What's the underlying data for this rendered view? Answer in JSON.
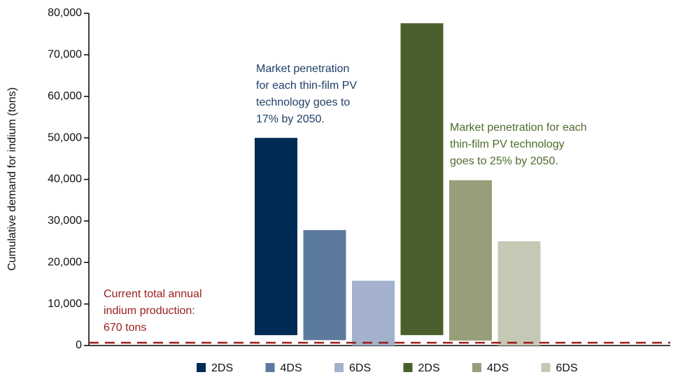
{
  "chart_data": {
    "type": "floating-bar",
    "y_label": "Cumulative demand for indium (tons)",
    "ylim": [
      0,
      80000
    ],
    "yticks": [
      0,
      {
        "value": 10000,
        "label": "10,000"
      },
      {
        "value": 20000,
        "label": "20,000"
      },
      {
        "value": 30000,
        "label": "30,000"
      },
      {
        "value": 40000,
        "label": "40,000"
      },
      {
        "value": 50000,
        "label": "50,000"
      },
      {
        "value": 60000,
        "label": "60,000"
      },
      {
        "value": 70000,
        "label": "70,000"
      },
      {
        "value": 80000,
        "label": "80,000"
      }
    ],
    "series": [
      {
        "name": "2DS",
        "color": "#002b54",
        "values": [
          50000
        ],
        "base": [
          2500
        ]
      },
      {
        "name": "4DS",
        "color": "#5c7a9e",
        "values": [
          27800
        ],
        "base": [
          1300
        ]
      },
      {
        "name": "6DS",
        "color": "#a3b1cc",
        "values": [
          15600
        ],
        "base": [
          0
        ]
      },
      {
        "name": "2DS",
        "color": "#4a602c",
        "values": [
          77600
        ],
        "base": [
          2500
        ]
      },
      {
        "name": "4DS",
        "color": "#969f7a",
        "values": [
          39800
        ],
        "base": [
          1200
        ]
      },
      {
        "name": "6DS",
        "color": "#c6c8b5",
        "values": [
          25100
        ],
        "base": [
          0
        ]
      }
    ],
    "reference_line": {
      "value": 670,
      "color": "#9b1c1c"
    },
    "annotations": [
      {
        "lines": [
          "Market penetration",
          "for each thin-film PV",
          "technology goes to",
          "17% by 2050."
        ],
        "color": "#1f3f66"
      },
      {
        "lines": [
          "Market penetration for each",
          "thin-film PV technology",
          "goes to 25% by 2050."
        ],
        "color": "#4f6a2c"
      },
      {
        "lines": [
          "Current total annual",
          "indium production:",
          "670 tons"
        ],
        "color": "#9b1c1c"
      }
    ]
  }
}
